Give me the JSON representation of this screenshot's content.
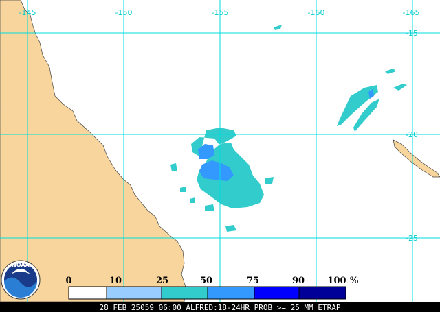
{
  "map": {
    "longitude_labels": [
      "-145",
      "-150",
      "-155",
      "-160",
      "-165"
    ],
    "latitude_labels": [
      "-15",
      "-20",
      "-25"
    ],
    "logo": "NOAA",
    "legend": {
      "labels": [
        "0",
        "10",
        "25",
        "50",
        "75",
        "90",
        "100"
      ],
      "unit": "%"
    },
    "footer": "28 FEB 25059 06:00 ALFRED:18-24HR PROB >= 25 MM ETRAP"
  }
}
